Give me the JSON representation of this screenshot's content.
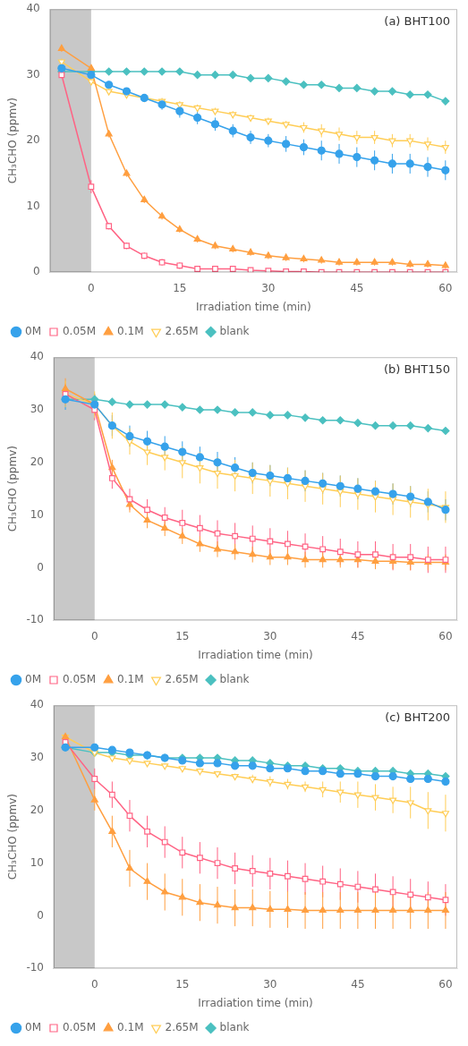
{
  "chart_data": [
    {
      "type": "line",
      "annotation": "(a) BHT100",
      "xlabel": "Irradiation time (min)",
      "ylabel": "CH₃CHO (ppmv)",
      "x": [
        -5,
        0,
        3,
        6,
        9,
        12,
        15,
        18,
        21,
        24,
        27,
        30,
        33,
        36,
        39,
        42,
        45,
        48,
        51,
        54,
        57,
        60
      ],
      "series": [
        {
          "name": "0M",
          "marker": "filled_circle",
          "values": [
            31,
            30,
            28.5,
            27.5,
            26.5,
            25.5,
            24.5,
            23.5,
            22.5,
            21.5,
            20.5,
            20,
            19.5,
            19,
            18.5,
            18,
            17.5,
            17,
            16.5,
            16.5,
            16,
            15.5
          ],
          "errors": [
            0.5,
            0.5,
            0.5,
            0.5,
            0.5,
            0.8,
            1.0,
            1.0,
            1.0,
            1.0,
            1.0,
            1.0,
            1.2,
            1.2,
            1.5,
            1.5,
            1.5,
            1.5,
            1.5,
            1.5,
            1.5,
            1.5
          ]
        },
        {
          "name": "0.05M",
          "marker": "open_square",
          "values": [
            30,
            13,
            7,
            4,
            2.5,
            1.5,
            1.0,
            0.5,
            0.5,
            0.5,
            0.3,
            0.2,
            0.1,
            0.1,
            0,
            0,
            0,
            0,
            0,
            0,
            0,
            0
          ],
          "errors": [
            0.5,
            1.0,
            0.5,
            0.5,
            0.5,
            0.5,
            0.5,
            0.3,
            0.3,
            0.3,
            0.2,
            0.2,
            0.1,
            0.1,
            0,
            0,
            0,
            0,
            0,
            0,
            0,
            0
          ]
        },
        {
          "name": "0.1M",
          "marker": "filled_triangle_up",
          "values": [
            34,
            31,
            21,
            15,
            11,
            8.5,
            6.5,
            5,
            4,
            3.5,
            3,
            2.5,
            2.2,
            2,
            1.8,
            1.5,
            1.5,
            1.5,
            1.5,
            1.2,
            1.2,
            1.0
          ],
          "errors": [
            0.5,
            0.5,
            0.5,
            0.5,
            0.5,
            0.5,
            0.5,
            0.5,
            0.5,
            0.5,
            0.5,
            0.5,
            0.5,
            0.5,
            0.5,
            0.5,
            0.5,
            0.5,
            0.5,
            0.5,
            0.5,
            0.5
          ]
        },
        {
          "name": "2.65M",
          "marker": "open_triangle_down",
          "values": [
            32,
            29,
            27.5,
            27,
            26.5,
            26,
            25.5,
            25,
            24.5,
            24,
            23.5,
            23,
            22.5,
            22,
            21.5,
            21,
            20.5,
            20.5,
            20,
            20,
            19.5,
            19
          ],
          "errors": [
            0.5,
            0.5,
            0.5,
            0.5,
            0.5,
            0.5,
            0.5,
            0.5,
            0.5,
            0.5,
            0.5,
            0.5,
            0.5,
            0.8,
            1.0,
            1.0,
            1.0,
            1.0,
            1.0,
            1.0,
            1.0,
            1.0
          ]
        },
        {
          "name": "blank",
          "marker": "filled_diamond",
          "values": [
            30.5,
            30.5,
            30.5,
            30.5,
            30.5,
            30.5,
            30.5,
            30,
            30,
            30,
            29.5,
            29.5,
            29,
            28.5,
            28.5,
            28,
            28,
            27.5,
            27.5,
            27,
            27,
            26
          ],
          "errors": [
            0,
            0,
            0,
            0,
            0,
            0,
            0,
            0,
            0,
            0,
            0,
            0,
            0,
            0,
            0,
            0,
            0,
            0,
            0,
            0,
            0,
            0
          ]
        }
      ],
      "xlim": [
        -7,
        62
      ],
      "xticks": [
        0,
        15,
        30,
        45,
        60
      ],
      "ylim": [
        0,
        40
      ],
      "yticks": [
        0,
        10,
        20,
        30,
        40
      ],
      "shaded_x": [
        -7,
        0
      ],
      "shaded_color": "#c8c8c8",
      "legend": "lower left",
      "grid": false
    },
    {
      "type": "line",
      "annotation": "(b) BHT150",
      "xlabel": "Irradiation time (min)",
      "ylabel": "CH₃CHO (ppmv)",
      "x": [
        -5,
        0,
        3,
        6,
        9,
        12,
        15,
        18,
        21,
        24,
        27,
        30,
        33,
        36,
        39,
        42,
        45,
        48,
        51,
        54,
        57,
        60
      ],
      "series": [
        {
          "name": "0M",
          "marker": "filled_circle",
          "values": [
            32,
            31,
            27,
            25,
            24,
            23,
            22,
            21,
            20,
            19,
            18,
            17.5,
            17,
            16.5,
            16,
            15.5,
            15,
            14.5,
            14,
            13.5,
            12.5,
            11
          ],
          "errors": [
            2.0,
            2.0,
            2.0,
            2.0,
            2.0,
            2.0,
            2.0,
            2.0,
            2.0,
            2.0,
            2.0,
            2.0,
            2.0,
            2.0,
            2.0,
            2.0,
            2.0,
            2.0,
            2.0,
            2.0,
            2.0,
            2.0
          ]
        },
        {
          "name": "0.05M",
          "marker": "open_square",
          "values": [
            33,
            30,
            17,
            13,
            11,
            9.5,
            8.5,
            7.5,
            6.5,
            6,
            5.5,
            5,
            4.5,
            4,
            3.5,
            3,
            2.5,
            2.5,
            2,
            2,
            1.5,
            1.5
          ],
          "errors": [
            2.0,
            2.0,
            2.0,
            2.0,
            2.0,
            2.0,
            2.5,
            2.5,
            2.5,
            2.5,
            2.5,
            2.5,
            2.5,
            2.5,
            2.5,
            2.5,
            2.5,
            2.5,
            2.5,
            2.5,
            2.5,
            2.5
          ]
        },
        {
          "name": "0.1M",
          "marker": "filled_triangle_up",
          "values": [
            34,
            31,
            19,
            12,
            9,
            7.5,
            6,
            4.5,
            3.5,
            3,
            2.5,
            2,
            2,
            1.5,
            1.5,
            1.5,
            1.5,
            1.2,
            1.2,
            1.0,
            1.0,
            1.0
          ],
          "errors": [
            2.0,
            2.0,
            1.5,
            1.5,
            1.5,
            1.5,
            1.5,
            1.5,
            1.5,
            1.5,
            1.5,
            1.5,
            1.5,
            1.5,
            1.5,
            1.5,
            1.5,
            1.5,
            1.5,
            1.5,
            1.5,
            1.5
          ]
        },
        {
          "name": "2.65M",
          "marker": "open_triangle_down",
          "values": [
            33,
            31,
            27,
            24,
            22,
            21,
            20,
            19,
            18,
            17.5,
            17,
            16.5,
            16,
            15.5,
            15,
            14.5,
            14,
            13.5,
            13,
            12.5,
            12,
            11.5
          ],
          "errors": [
            2.5,
            2.5,
            2.5,
            2.5,
            2.5,
            2.5,
            3.0,
            3.0,
            3.0,
            3.0,
            3.0,
            3.0,
            3.0,
            3.0,
            3.0,
            3.0,
            3.0,
            3.0,
            3.0,
            3.0,
            3.0,
            3.0
          ]
        },
        {
          "name": "blank",
          "marker": "filled_diamond",
          "values": [
            32,
            32,
            31.5,
            31,
            31,
            31,
            30.5,
            30,
            30,
            29.5,
            29.5,
            29,
            29,
            28.5,
            28,
            28,
            27.5,
            27,
            27,
            27,
            26.5,
            26
          ],
          "errors": [
            0,
            0,
            0,
            0,
            0,
            0,
            0,
            0,
            0,
            0,
            0,
            0,
            0,
            0,
            0,
            0,
            0,
            0,
            0,
            0,
            0,
            0
          ]
        }
      ],
      "xlim": [
        -7,
        62
      ],
      "xticks": [
        0,
        15,
        30,
        45,
        60
      ],
      "ylim": [
        -10,
        40
      ],
      "yticks": [
        -10,
        0,
        10,
        20,
        30,
        40
      ],
      "shaded_x": [
        -7,
        0
      ],
      "shaded_color": "#c8c8c8",
      "legend": "lower left",
      "grid": false
    },
    {
      "type": "line",
      "annotation": "(c) BHT200",
      "xlabel": "Irradiation time (min)",
      "ylabel": "CH₃CHO (ppmv)",
      "x": [
        -5,
        0,
        3,
        6,
        9,
        12,
        15,
        18,
        21,
        24,
        27,
        30,
        33,
        36,
        39,
        42,
        45,
        48,
        51,
        54,
        57,
        60
      ],
      "series": [
        {
          "name": "0M",
          "marker": "filled_circle",
          "values": [
            32,
            32,
            31.5,
            31,
            30.5,
            30,
            29.5,
            29,
            29,
            28.5,
            28.5,
            28,
            28,
            27.5,
            27.5,
            27,
            27,
            26.5,
            26.5,
            26,
            26,
            25.5
          ],
          "errors": [
            0.5,
            0.5,
            0.5,
            0.5,
            0.5,
            0.5,
            0.5,
            0.5,
            0.5,
            0.5,
            0.5,
            0.5,
            0.5,
            0.5,
            0.5,
            0.5,
            0.5,
            0.5,
            0.5,
            0.5,
            0.5,
            0.5
          ]
        },
        {
          "name": "0.05M",
          "marker": "open_square",
          "values": [
            33,
            26,
            23,
            19,
            16,
            14,
            12,
            11,
            10,
            9,
            8.5,
            8,
            7.5,
            7,
            6.5,
            6,
            5.5,
            5,
            4.5,
            4,
            3.5,
            3
          ],
          "errors": [
            0.5,
            2.0,
            2.5,
            3.0,
            3.0,
            3.0,
            3.0,
            3.0,
            3.0,
            3.0,
            3.0,
            3.0,
            3.0,
            3.0,
            3.0,
            3.0,
            3.0,
            3.0,
            3.0,
            3.0,
            3.0,
            3.0
          ]
        },
        {
          "name": "0.1M",
          "marker": "filled_triangle_up",
          "values": [
            34,
            22,
            16,
            9,
            6.5,
            4.5,
            3.5,
            2.5,
            2,
            1.5,
            1.5,
            1.2,
            1.2,
            1.0,
            1.0,
            1.0,
            1.0,
            1.0,
            1.0,
            1.0,
            1.0,
            1.0
          ],
          "errors": [
            0.5,
            2.0,
            3.0,
            3.5,
            3.5,
            3.5,
            3.5,
            3.5,
            3.5,
            3.5,
            3.5,
            3.5,
            3.5,
            3.5,
            3.5,
            3.5,
            3.5,
            3.5,
            3.5,
            3.5,
            3.5,
            3.5
          ]
        },
        {
          "name": "2.65M",
          "marker": "open_triangle_down",
          "values": [
            34,
            31,
            30,
            29.5,
            29,
            28.5,
            28,
            27.5,
            27,
            26.5,
            26,
            25.5,
            25,
            24.5,
            24,
            23.5,
            23,
            22.5,
            22,
            21.5,
            20,
            19.5
          ],
          "errors": [
            0.5,
            0.5,
            0.5,
            0.5,
            0.5,
            0.5,
            0.5,
            0.5,
            0.5,
            0.5,
            0.8,
            1.0,
            1.0,
            1.0,
            1.5,
            2.0,
            2.5,
            2.5,
            2.5,
            3.0,
            3.5,
            3.5
          ]
        },
        {
          "name": "blank",
          "marker": "filled_diamond",
          "values": [
            32,
            31,
            31,
            30.5,
            30.5,
            30,
            30,
            30,
            30,
            29.5,
            29.5,
            29,
            28.5,
            28.5,
            28,
            28,
            27.5,
            27.5,
            27.5,
            27,
            27,
            26.5
          ],
          "errors": [
            0,
            0,
            0,
            0,
            0,
            0,
            0,
            0,
            0,
            0,
            0,
            0,
            0,
            0,
            0,
            0,
            0,
            0,
            0,
            0,
            0,
            0
          ]
        }
      ],
      "xlim": [
        -7,
        62
      ],
      "xticks": [
        0,
        15,
        30,
        45,
        60
      ],
      "ylim": [
        -10,
        40
      ],
      "yticks": [
        -10,
        0,
        10,
        20,
        30,
        40
      ],
      "shaded_x": [
        -7,
        0
      ],
      "shaded_color": "#c8c8c8",
      "legend": "lower left",
      "grid": false
    }
  ]
}
